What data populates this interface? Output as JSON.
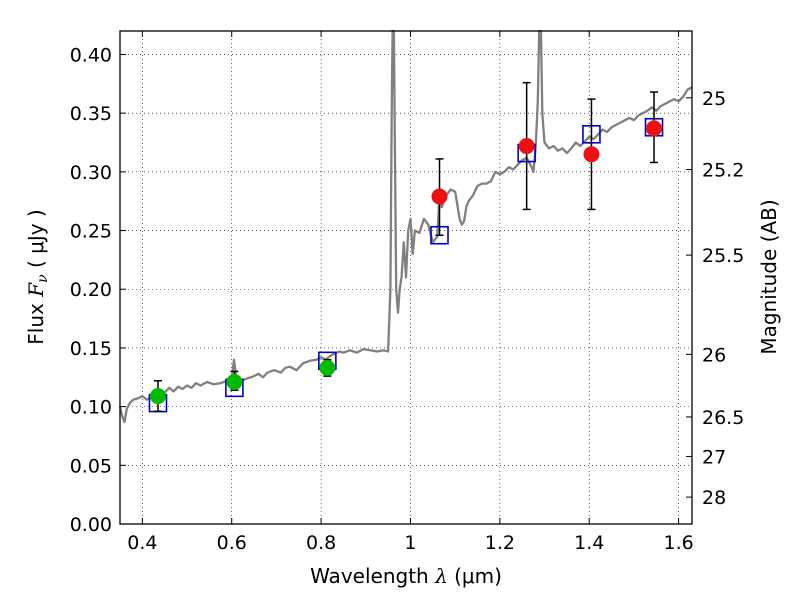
{
  "chart_data": {
    "type": "scatter",
    "title": "",
    "xlabel": "Wavelength",
    "xlabel_symbol": "λ",
    "xlabel_unit": "(μm)",
    "ylabel": "Flux",
    "ylabel_symbol": "F",
    "ylabel_symbol_sub": "ν",
    "ylabel_unit": "( μJy )",
    "y2label": "Magnitude (AB)",
    "xlim": [
      0.35,
      1.63
    ],
    "ylim": [
      0.0,
      0.42
    ],
    "grid": true,
    "grid_style": "dotted",
    "xticks": [
      {
        "value": 0.4,
        "label": "0.4"
      },
      {
        "value": 0.6,
        "label": "0.6"
      },
      {
        "value": 0.8,
        "label": "0.8"
      },
      {
        "value": 1.0,
        "label": "1"
      },
      {
        "value": 1.2,
        "label": "1.2"
      },
      {
        "value": 1.4,
        "label": "1.4"
      },
      {
        "value": 1.6,
        "label": "1.6"
      }
    ],
    "yticks": [
      {
        "value": 0.0,
        "label": "0.00"
      },
      {
        "value": 0.05,
        "label": "0.05"
      },
      {
        "value": 0.1,
        "label": "0.10"
      },
      {
        "value": 0.15,
        "label": "0.15"
      },
      {
        "value": 0.2,
        "label": "0.20"
      },
      {
        "value": 0.25,
        "label": "0.25"
      },
      {
        "value": 0.3,
        "label": "0.30"
      },
      {
        "value": 0.35,
        "label": "0.35"
      },
      {
        "value": 0.4,
        "label": "0.40"
      }
    ],
    "y2ticks": [
      {
        "magnitude": 25,
        "label": "25"
      },
      {
        "magnitude": 25.2,
        "label": "25.2"
      },
      {
        "magnitude": 25.5,
        "label": "25.5"
      },
      {
        "magnitude": 26,
        "label": "26"
      },
      {
        "magnitude": 26.5,
        "label": "26.5"
      },
      {
        "magnitude": 27,
        "label": "27"
      },
      {
        "magnitude": 28,
        "label": "28"
      }
    ],
    "model_spectrum": {
      "color": "#808080",
      "points": [
        [
          0.35,
          0.1
        ],
        [
          0.355,
          0.092
        ],
        [
          0.36,
          0.087
        ],
        [
          0.365,
          0.098
        ],
        [
          0.372,
          0.103
        ],
        [
          0.38,
          0.106
        ],
        [
          0.39,
          0.107
        ],
        [
          0.4,
          0.109
        ],
        [
          0.41,
          0.106
        ],
        [
          0.42,
          0.108
        ],
        [
          0.435,
          0.11
        ],
        [
          0.45,
          0.112
        ],
        [
          0.46,
          0.116
        ],
        [
          0.47,
          0.113
        ],
        [
          0.48,
          0.117
        ],
        [
          0.49,
          0.115
        ],
        [
          0.5,
          0.118
        ],
        [
          0.51,
          0.116
        ],
        [
          0.52,
          0.12
        ],
        [
          0.53,
          0.118
        ],
        [
          0.545,
          0.121
        ],
        [
          0.56,
          0.119
        ],
        [
          0.575,
          0.12
        ],
        [
          0.59,
          0.122
        ],
        [
          0.6,
          0.124
        ],
        [
          0.605,
          0.14
        ],
        [
          0.61,
          0.125
        ],
        [
          0.62,
          0.122
        ],
        [
          0.635,
          0.124
        ],
        [
          0.65,
          0.126
        ],
        [
          0.66,
          0.128
        ],
        [
          0.67,
          0.125
        ],
        [
          0.68,
          0.129
        ],
        [
          0.695,
          0.131
        ],
        [
          0.71,
          0.129
        ],
        [
          0.72,
          0.133
        ],
        [
          0.73,
          0.134
        ],
        [
          0.745,
          0.131
        ],
        [
          0.76,
          0.137
        ],
        [
          0.775,
          0.139
        ],
        [
          0.79,
          0.14
        ],
        [
          0.8,
          0.142
        ],
        [
          0.81,
          0.14
        ],
        [
          0.82,
          0.143
        ],
        [
          0.83,
          0.145
        ],
        [
          0.84,
          0.147
        ],
        [
          0.85,
          0.146
        ],
        [
          0.865,
          0.148
        ],
        [
          0.88,
          0.146
        ],
        [
          0.895,
          0.149
        ],
        [
          0.91,
          0.148
        ],
        [
          0.925,
          0.147
        ],
        [
          0.94,
          0.148
        ],
        [
          0.95,
          0.147
        ],
        [
          0.955,
          0.2
        ],
        [
          0.958,
          0.35
        ],
        [
          0.96,
          0.42
        ],
        [
          0.963,
          0.42
        ],
        [
          0.965,
          0.33
        ],
        [
          0.968,
          0.2
        ],
        [
          0.972,
          0.18
        ],
        [
          0.976,
          0.2
        ],
        [
          0.98,
          0.21
        ],
        [
          0.985,
          0.24
        ],
        [
          0.99,
          0.21
        ],
        [
          0.995,
          0.25
        ],
        [
          1.0,
          0.26
        ],
        [
          1.005,
          0.23
        ],
        [
          1.01,
          0.25
        ],
        [
          1.02,
          0.248
        ],
        [
          1.03,
          0.26
        ],
        [
          1.04,
          0.255
        ],
        [
          1.05,
          0.24
        ],
        [
          1.06,
          0.245
        ],
        [
          1.065,
          0.28
        ],
        [
          1.07,
          0.27
        ],
        [
          1.08,
          0.28
        ],
        [
          1.09,
          0.285
        ],
        [
          1.1,
          0.283
        ],
        [
          1.11,
          0.26
        ],
        [
          1.115,
          0.255
        ],
        [
          1.12,
          0.258
        ],
        [
          1.125,
          0.27
        ],
        [
          1.13,
          0.275
        ],
        [
          1.14,
          0.28
        ],
        [
          1.15,
          0.288
        ],
        [
          1.16,
          0.29
        ],
        [
          1.17,
          0.29
        ],
        [
          1.18,
          0.292
        ],
        [
          1.19,
          0.3
        ],
        [
          1.2,
          0.298
        ],
        [
          1.21,
          0.3
        ],
        [
          1.22,
          0.304
        ],
        [
          1.23,
          0.302
        ],
        [
          1.24,
          0.306
        ],
        [
          1.25,
          0.31
        ],
        [
          1.26,
          0.312
        ],
        [
          1.27,
          0.305
        ],
        [
          1.275,
          0.3
        ],
        [
          1.28,
          0.32
        ],
        [
          1.285,
          0.36
        ],
        [
          1.288,
          0.42
        ],
        [
          1.292,
          0.42
        ],
        [
          1.295,
          0.35
        ],
        [
          1.3,
          0.325
        ],
        [
          1.31,
          0.32
        ],
        [
          1.32,
          0.322
        ],
        [
          1.33,
          0.318
        ],
        [
          1.34,
          0.32
        ],
        [
          1.35,
          0.316
        ],
        [
          1.36,
          0.32
        ],
        [
          1.37,
          0.325
        ],
        [
          1.38,
          0.322
        ],
        [
          1.39,
          0.326
        ],
        [
          1.4,
          0.33
        ],
        [
          1.41,
          0.328
        ],
        [
          1.42,
          0.332
        ],
        [
          1.43,
          0.336
        ],
        [
          1.44,
          0.334
        ],
        [
          1.45,
          0.338
        ],
        [
          1.46,
          0.34
        ],
        [
          1.47,
          0.342
        ],
        [
          1.48,
          0.344
        ],
        [
          1.49,
          0.346
        ],
        [
          1.5,
          0.344
        ],
        [
          1.51,
          0.348
        ],
        [
          1.52,
          0.35
        ],
        [
          1.53,
          0.352
        ],
        [
          1.54,
          0.355
        ],
        [
          1.55,
          0.352
        ],
        [
          1.56,
          0.356
        ],
        [
          1.57,
          0.358
        ],
        [
          1.58,
          0.36
        ],
        [
          1.59,
          0.362
        ],
        [
          1.6,
          0.36
        ],
        [
          1.61,
          0.364
        ],
        [
          1.62,
          0.37
        ],
        [
          1.63,
          0.372
        ]
      ]
    },
    "model_photometry": {
      "marker": "open-square",
      "color": "#0000cc",
      "points": [
        {
          "x": 0.435,
          "y": 0.103
        },
        {
          "x": 0.606,
          "y": 0.116
        },
        {
          "x": 0.814,
          "y": 0.139
        },
        {
          "x": 1.065,
          "y": 0.246
        },
        {
          "x": 1.26,
          "y": 0.316
        },
        {
          "x": 1.405,
          "y": 0.332
        },
        {
          "x": 1.545,
          "y": 0.338
        }
      ]
    },
    "observed_photometry": [
      {
        "x": 0.435,
        "y": 0.109,
        "err_low": 0.096,
        "err_high": 0.122,
        "color": "#00bb00"
      },
      {
        "x": 0.606,
        "y": 0.121,
        "err_low": 0.114,
        "err_high": 0.13,
        "color": "#00bb00"
      },
      {
        "x": 0.814,
        "y": 0.133,
        "err_low": 0.126,
        "err_high": 0.14,
        "color": "#00bb00"
      },
      {
        "x": 1.065,
        "y": 0.279,
        "err_low": 0.246,
        "err_high": 0.311,
        "color": "#ee1111"
      },
      {
        "x": 1.26,
        "y": 0.322,
        "err_low": 0.268,
        "err_high": 0.376,
        "color": "#ee1111"
      },
      {
        "x": 1.405,
        "y": 0.315,
        "err_low": 0.268,
        "err_high": 0.362,
        "color": "#ee1111"
      },
      {
        "x": 1.545,
        "y": 0.337,
        "err_low": 0.308,
        "err_high": 0.368,
        "color": "#ee1111"
      }
    ]
  }
}
